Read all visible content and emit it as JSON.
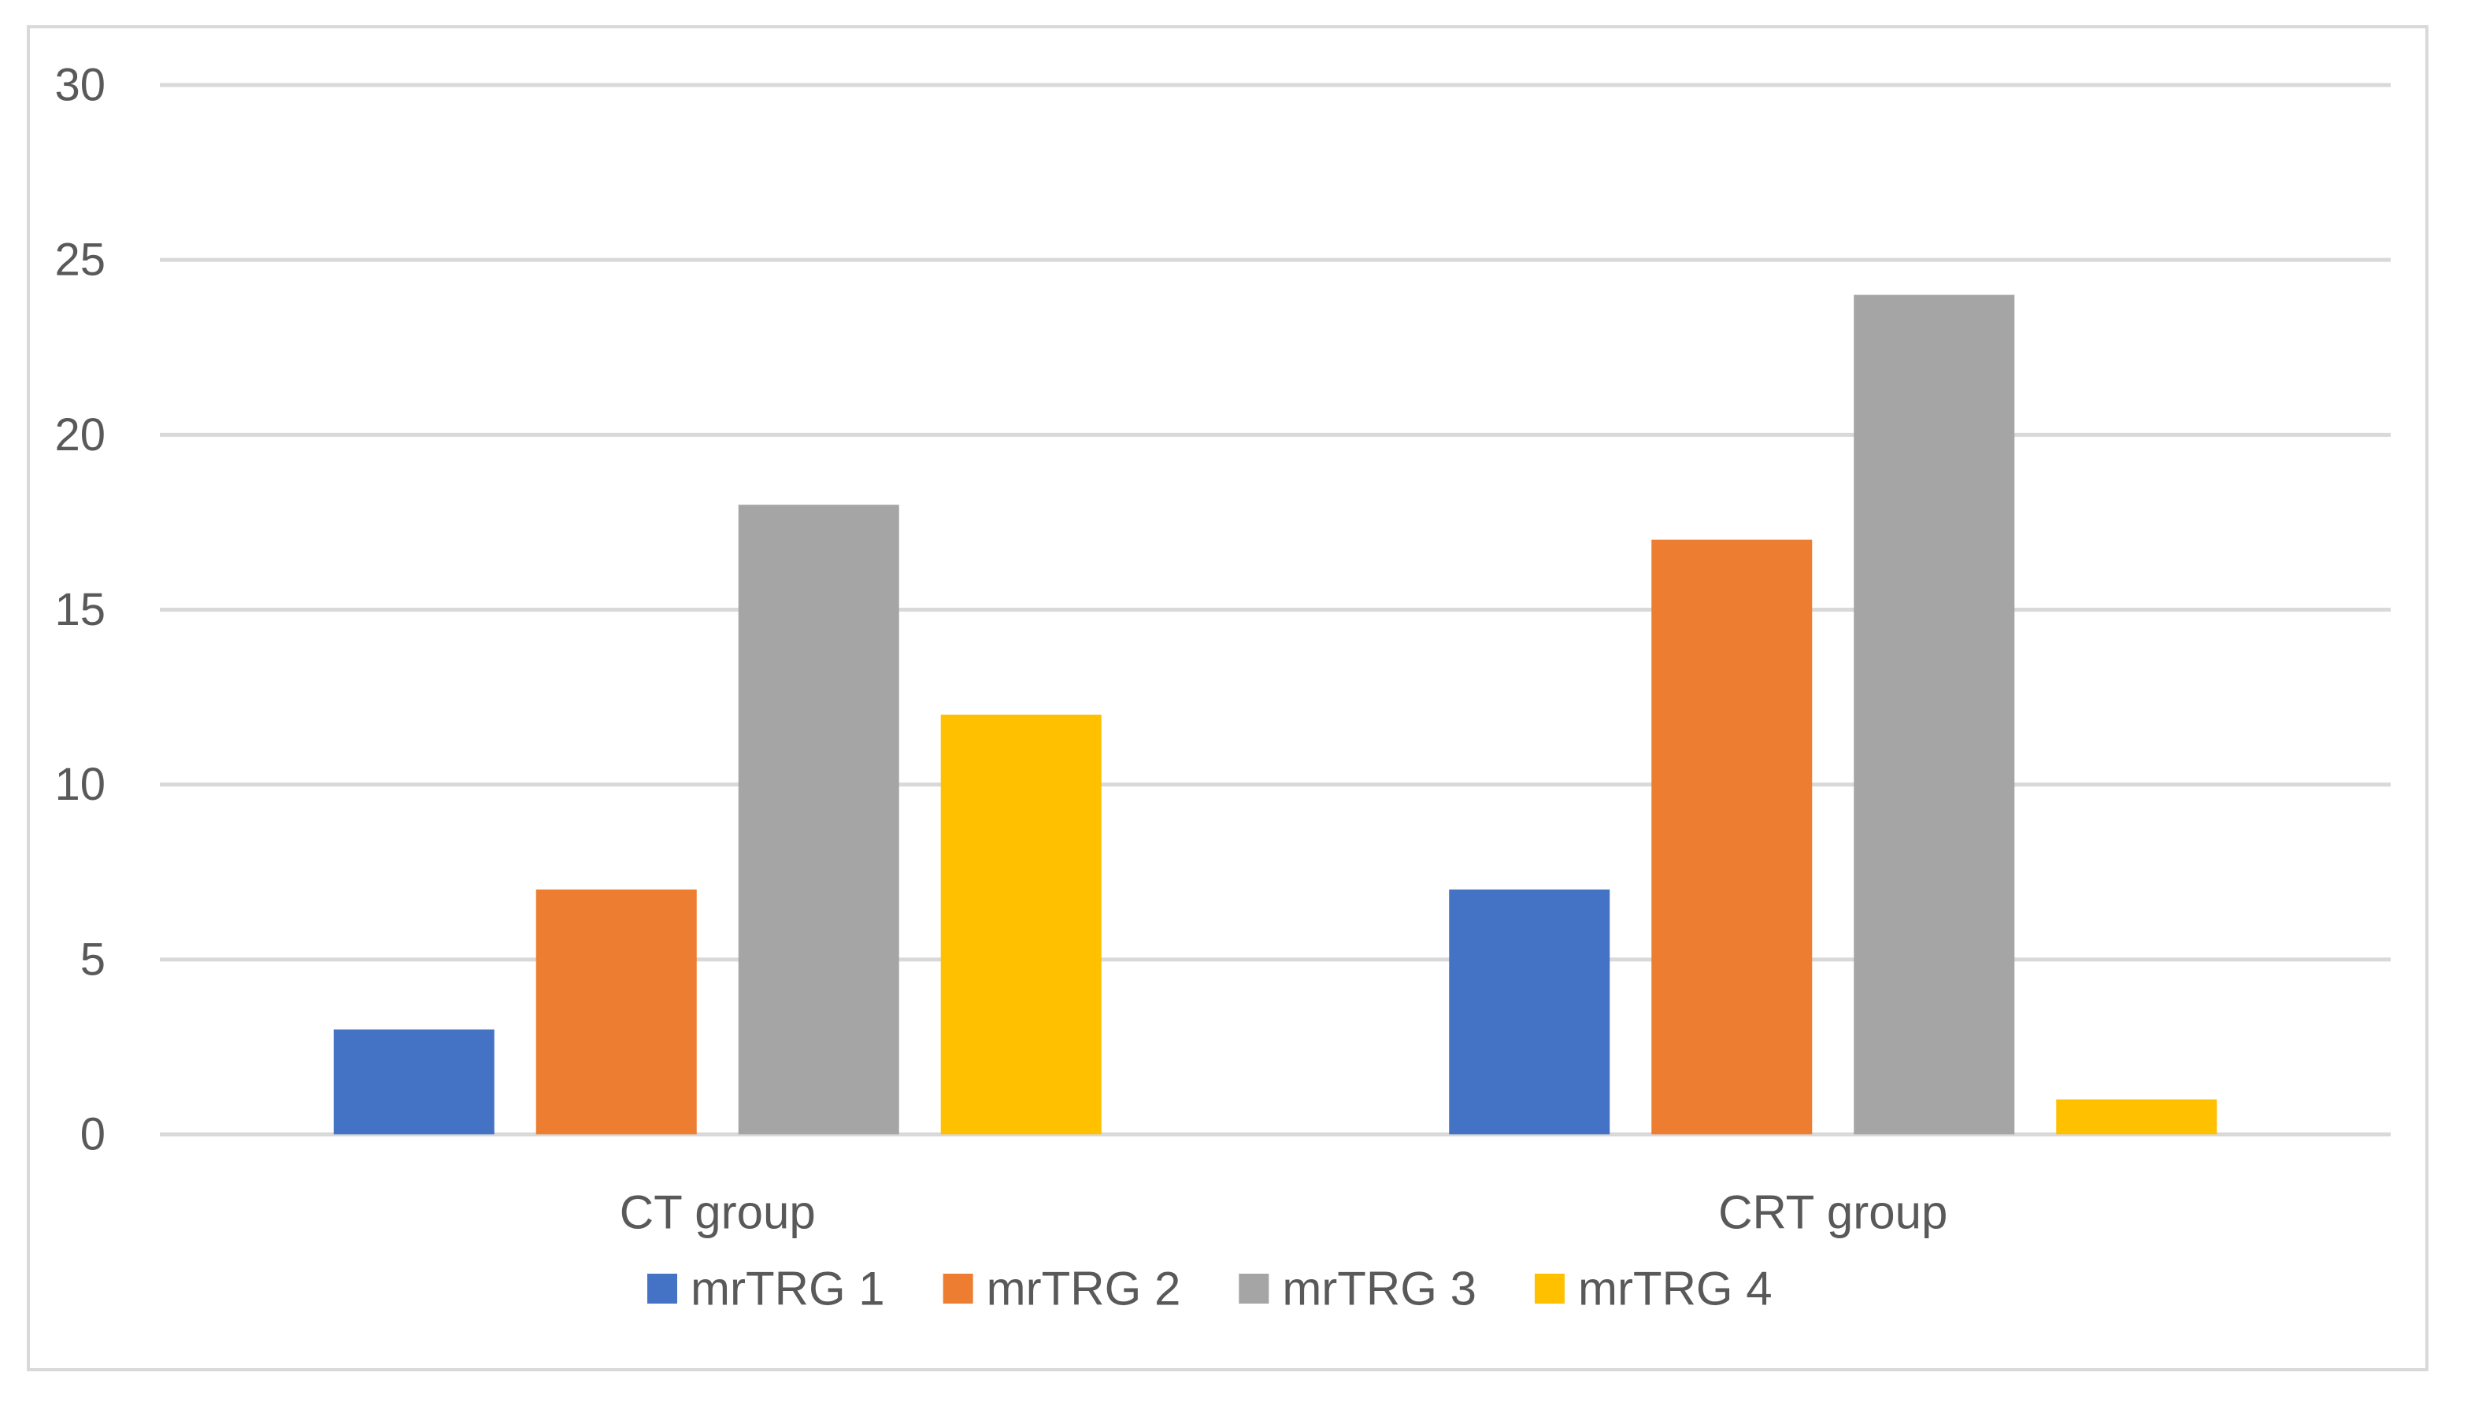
{
  "chart_data": {
    "type": "bar",
    "title": "",
    "xlabel": "",
    "ylabel": "",
    "categories": [
      "CT group",
      "CRT group"
    ],
    "series": [
      {
        "name": "mrTRG 1",
        "values": [
          3,
          7
        ],
        "color": "#4472c4"
      },
      {
        "name": "mrTRG 2",
        "values": [
          7,
          17
        ],
        "color": "#ed7d31"
      },
      {
        "name": "mrTRG 3",
        "values": [
          18,
          24
        ],
        "color": "#a5a5a5"
      },
      {
        "name": "mrTRG 4",
        "values": [
          12,
          1
        ],
        "color": "#ffc000"
      }
    ],
    "ylim": [
      0,
      30
    ],
    "yticks": [
      0,
      5,
      10,
      15,
      20,
      25,
      30
    ],
    "grid": true,
    "legend_position": "bottom",
    "gridline_color": "#d9d9d9",
    "text_color": "#595959"
  }
}
